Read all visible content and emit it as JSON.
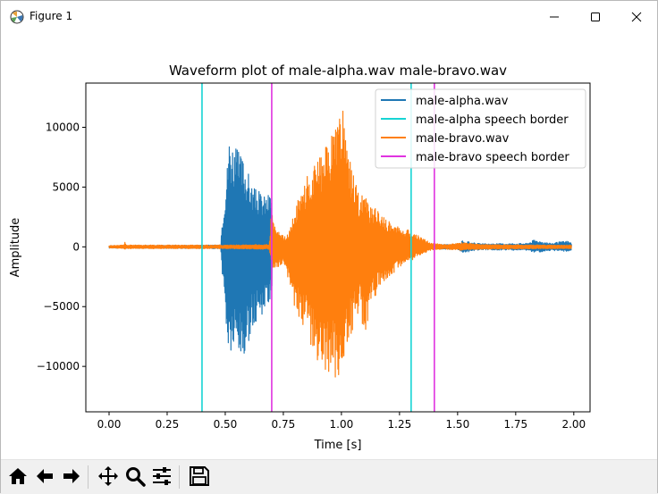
{
  "window": {
    "title": "Figure 1",
    "controls": {
      "minimize": "minimize",
      "maximize": "maximize",
      "close": "close"
    }
  },
  "toolbar": {
    "buttons": [
      {
        "name": "home-button",
        "icon": "home-icon"
      },
      {
        "name": "back-button",
        "icon": "arrow-left-icon"
      },
      {
        "name": "forward-button",
        "icon": "arrow-right-icon"
      },
      {
        "name": "pan-button",
        "icon": "move-icon"
      },
      {
        "name": "zoom-button",
        "icon": "magnifier-icon"
      },
      {
        "name": "configure-subplots-button",
        "icon": "sliders-icon"
      },
      {
        "name": "save-button",
        "icon": "floppy-disk-icon"
      }
    ]
  },
  "chart_data": {
    "type": "line",
    "title": "Waveform plot of male-alpha.wav male-bravo.wav",
    "xlabel": "Time [s]",
    "ylabel": "Amplitude",
    "xlim": [
      -0.1,
      2.07
    ],
    "ylim": [
      -13800,
      13700
    ],
    "xticks": [
      "0.00",
      "0.25",
      "0.50",
      "0.75",
      "1.00",
      "1.25",
      "1.50",
      "1.75",
      "2.00"
    ],
    "xtick_values": [
      0,
      0.25,
      0.5,
      0.75,
      1.0,
      1.25,
      1.5,
      1.75,
      2.0
    ],
    "yticks": [
      "−10000",
      "−5000",
      "0",
      "5000",
      "10000"
    ],
    "ytick_values": [
      -10000,
      -5000,
      0,
      5000,
      10000
    ],
    "grid": false,
    "legend_position": "top-right",
    "series": [
      {
        "name": "male-alpha.wav",
        "color": "#1f77b4",
        "envelope": [
          [
            0.0,
            100
          ],
          [
            0.48,
            150
          ],
          [
            0.485,
            1800
          ],
          [
            0.49,
            3000
          ],
          [
            0.5,
            5200
          ],
          [
            0.51,
            7300
          ],
          [
            0.515,
            9600
          ],
          [
            0.53,
            9000
          ],
          [
            0.55,
            8200
          ],
          [
            0.58,
            7500
          ],
          [
            0.6,
            6200
          ],
          [
            0.62,
            5000
          ],
          [
            0.65,
            4600
          ],
          [
            0.67,
            4300
          ],
          [
            0.7,
            4700
          ],
          [
            0.705,
            600
          ],
          [
            0.8,
            150
          ],
          [
            1.0,
            150
          ],
          [
            1.5,
            200
          ],
          [
            1.52,
            500
          ],
          [
            1.6,
            250
          ],
          [
            1.8,
            300
          ],
          [
            1.83,
            600
          ],
          [
            1.9,
            300
          ],
          [
            1.97,
            500
          ],
          [
            1.99,
            350
          ]
        ],
        "envelope_low": [
          [
            0.0,
            -100
          ],
          [
            0.48,
            -150
          ],
          [
            0.485,
            -1500
          ],
          [
            0.49,
            -3200
          ],
          [
            0.5,
            -6000
          ],
          [
            0.51,
            -8500
          ],
          [
            0.515,
            -9800
          ],
          [
            0.53,
            -9200
          ],
          [
            0.55,
            -9300
          ],
          [
            0.58,
            -10200
          ],
          [
            0.6,
            -8200
          ],
          [
            0.62,
            -6500
          ],
          [
            0.65,
            -6000
          ],
          [
            0.67,
            -5300
          ],
          [
            0.7,
            -4200
          ],
          [
            0.705,
            -500
          ],
          [
            0.8,
            -150
          ],
          [
            1.0,
            -150
          ],
          [
            1.5,
            -200
          ],
          [
            1.52,
            -500
          ],
          [
            1.6,
            -250
          ],
          [
            1.8,
            -300
          ],
          [
            1.83,
            -500
          ],
          [
            1.9,
            -300
          ],
          [
            1.97,
            -400
          ],
          [
            1.99,
            -300
          ]
        ]
      },
      {
        "name": "male-bravo.wav",
        "color": "#ff7f0e",
        "envelope": [
          [
            0.0,
            100
          ],
          [
            0.065,
            150
          ],
          [
            0.068,
            650
          ],
          [
            0.072,
            150
          ],
          [
            0.5,
            150
          ],
          [
            0.69,
            200
          ],
          [
            0.7,
            3500
          ],
          [
            0.705,
            2200
          ],
          [
            0.72,
            1400
          ],
          [
            0.76,
            800
          ],
          [
            0.78,
            1500
          ],
          [
            0.8,
            3300
          ],
          [
            0.83,
            5000
          ],
          [
            0.86,
            6200
          ],
          [
            0.9,
            7500
          ],
          [
            0.94,
            8800
          ],
          [
            0.97,
            10500
          ],
          [
            0.99,
            11800
          ],
          [
            1.0,
            12400
          ],
          [
            1.01,
            11500
          ],
          [
            1.02,
            9000
          ],
          [
            1.05,
            6300
          ],
          [
            1.08,
            4000
          ],
          [
            1.1,
            5100
          ],
          [
            1.12,
            3500
          ],
          [
            1.15,
            3200
          ],
          [
            1.2,
            2200
          ],
          [
            1.25,
            1700
          ],
          [
            1.3,
            1300
          ],
          [
            1.35,
            700
          ],
          [
            1.39,
            300
          ],
          [
            1.45,
            200
          ],
          [
            1.52,
            350
          ],
          [
            1.6,
            200
          ],
          [
            1.9,
            150
          ],
          [
            1.99,
            150
          ]
        ],
        "envelope_low": [
          [
            0.0,
            -100
          ],
          [
            0.065,
            -150
          ],
          [
            0.068,
            -400
          ],
          [
            0.072,
            -150
          ],
          [
            0.5,
            -150
          ],
          [
            0.69,
            -200
          ],
          [
            0.7,
            -1500
          ],
          [
            0.705,
            -1800
          ],
          [
            0.72,
            -1700
          ],
          [
            0.76,
            -1500
          ],
          [
            0.78,
            -3800
          ],
          [
            0.8,
            -5500
          ],
          [
            0.83,
            -6300
          ],
          [
            0.86,
            -7800
          ],
          [
            0.9,
            -9800
          ],
          [
            0.94,
            -10800
          ],
          [
            0.97,
            -11000
          ],
          [
            0.99,
            -12000
          ],
          [
            1.0,
            -12300
          ],
          [
            1.01,
            -10500
          ],
          [
            1.02,
            -8800
          ],
          [
            1.05,
            -6800
          ],
          [
            1.08,
            -5000
          ],
          [
            1.1,
            -8000
          ],
          [
            1.12,
            -5400
          ],
          [
            1.15,
            -4000
          ],
          [
            1.2,
            -2700
          ],
          [
            1.25,
            -1800
          ],
          [
            1.3,
            -1200
          ],
          [
            1.35,
            -600
          ],
          [
            1.39,
            -250
          ],
          [
            1.45,
            -200
          ],
          [
            1.52,
            -300
          ],
          [
            1.6,
            -200
          ],
          [
            1.9,
            -150
          ],
          [
            1.99,
            -150
          ]
        ]
      },
      {
        "name": "male-alpha speech border",
        "color": "#17d4d4",
        "vlines": [
          0.4,
          1.3
        ]
      },
      {
        "name": "male-bravo speech border",
        "color": "#e033e0",
        "vlines": [
          0.7,
          1.4
        ]
      }
    ]
  }
}
